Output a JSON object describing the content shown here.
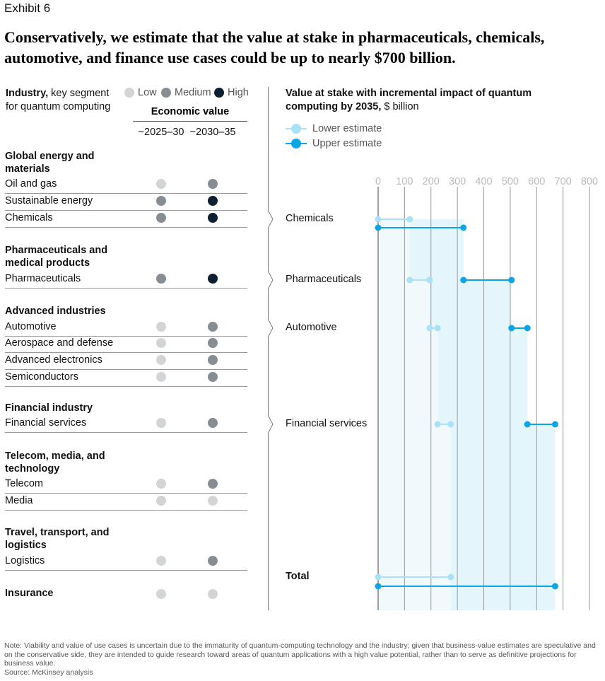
{
  "exhibit_label": "Exhibit 6",
  "title": "Conservatively, we estimate that the value at stake in pharmaceuticals, chemicals, automotive, and finance use cases could be up to nearly $700 billion.",
  "left_header": {
    "industry_bold": "Industry,",
    "industry_rest": " key segment for quantum computing"
  },
  "legend": {
    "low": "Low",
    "medium": "Medium",
    "high": "High",
    "colors": {
      "low": "#d2d4d6",
      "medium": "#868d93",
      "high": "#0c1f33"
    }
  },
  "economic_value": {
    "title": "Economic value",
    "period_1": "~2025–30",
    "period_2": "~2030–35"
  },
  "industries": [
    {
      "group": "Global energy and materials",
      "segments": [
        {
          "name": "Oil and gas",
          "v2025": "low",
          "v2030": "medium"
        },
        {
          "name": "Sustainable energy",
          "v2025": "medium",
          "v2030": "high"
        },
        {
          "name": "Chemicals",
          "v2025": "medium",
          "v2030": "high"
        }
      ]
    },
    {
      "group": "Pharmaceuticals and medical products",
      "segments": [
        {
          "name": "Pharmaceuticals",
          "v2025": "medium",
          "v2030": "high"
        }
      ]
    },
    {
      "group": "Advanced industries",
      "segments": [
        {
          "name": "Automotive",
          "v2025": "low",
          "v2030": "medium"
        },
        {
          "name": "Aerospace and defense",
          "v2025": "low",
          "v2030": "medium"
        },
        {
          "name": "Advanced electronics",
          "v2025": "low",
          "v2030": "medium"
        },
        {
          "name": "Semiconductors",
          "v2025": "low",
          "v2030": "medium"
        }
      ]
    },
    {
      "group": "Financial industry",
      "segments": [
        {
          "name": "Financial services",
          "v2025": "low",
          "v2030": "medium"
        }
      ]
    },
    {
      "group": "Telecom, media, and technology",
      "segments": [
        {
          "name": "Telecom",
          "v2025": "low",
          "v2030": "medium"
        },
        {
          "name": "Media",
          "v2025": "low",
          "v2030": "low"
        }
      ]
    },
    {
      "group": "Travel, transport, and logistics",
      "segments": [
        {
          "name": "Logistics",
          "v2025": "low",
          "v2030": "medium"
        }
      ]
    },
    {
      "group": "Insurance",
      "v2025": "low",
      "v2030": "low"
    }
  ],
  "chart_data": {
    "type": "waterfall-range",
    "title_bold": "Value at stake with incremental impact of quantum computing by 2035,",
    "title_unit": " $ billion",
    "x_ticks": [
      0,
      100,
      200,
      300,
      400,
      500,
      600,
      700,
      800
    ],
    "xlim": [
      0,
      800
    ],
    "grid": true,
    "series": [
      {
        "name": "Lower estimate",
        "color": "#a9e2f7"
      },
      {
        "name": "Upper estimate",
        "color": "#0aa5e8"
      }
    ],
    "items": [
      {
        "label": "Chemicals",
        "lower": [
          0,
          120
        ],
        "upper": [
          0,
          323
        ]
      },
      {
        "label": "Pharmaceuticals",
        "lower": [
          120,
          195
        ],
        "upper": [
          323,
          505
        ]
      },
      {
        "label": "Automotive",
        "lower": [
          195,
          225
        ],
        "upper": [
          505,
          565
        ]
      },
      {
        "label": "Financial services",
        "lower": [
          225,
          275
        ],
        "upper": [
          565,
          670
        ]
      }
    ],
    "total": {
      "label": "Total",
      "lower": [
        0,
        275
      ],
      "upper": [
        0,
        670
      ]
    }
  },
  "note": "Note: Viability and value of use cases is uncertain due to the immaturity of quantum-computing technology and the industry; given that business-value estimates are speculative and on the conservative side, they are intended to guide research toward areas of quantum applications with a high value potential, rather than to serve as definitive projections for business value.",
  "source": "Source: McKinsey analysis"
}
